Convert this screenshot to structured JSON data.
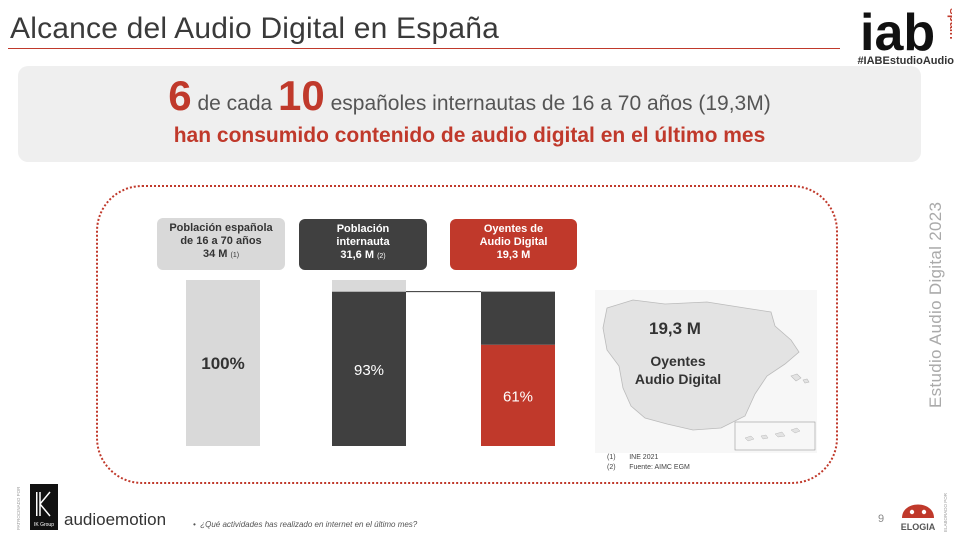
{
  "page": {
    "title": "Alcance del Audio Digital en España",
    "hashtag": "#IABEstudioAudio",
    "logo_text": "iab",
    "logo_subtext": "spain",
    "vertical_title": "Estudio Audio Digital 2023",
    "page_number": "9"
  },
  "headline": {
    "num1": "6",
    "text1": " de cada ",
    "num2": "10",
    "text2": " españoles internautas de 16 a 70 años (19,3M)",
    "line2": "han consumido contenido de audio digital en el último mes"
  },
  "labels": {
    "c1_l1": "Población española",
    "c1_l2": "de 16 a 70 años",
    "c1_l3": "34 M",
    "c1_sup": "(1)",
    "c2_l1": "Población",
    "c2_l2": "internauta",
    "c2_l3": "31,6 M",
    "c2_sup": "(2)",
    "c3_l1": "Oyentes de",
    "c3_l2": "Audio Digital",
    "c3_l3": "19,3 M"
  },
  "map": {
    "value": "19,3 M",
    "label_l1": "Oyentes",
    "label_l2": "Audio Digital"
  },
  "notes": {
    "n1_num": "(1)",
    "n1_text": "INE 2021",
    "n2_num": "(2)",
    "n2_text": "Fuente: AIMC EGM"
  },
  "footer": {
    "footnote": "¿Qué actividades has realizado en internet en el último mes?",
    "patrocinado": "PATROCINADO POR",
    "elaborado": "ELABORADO POR",
    "ikgroup": "IK Group",
    "audioemotion": "audioemotion",
    "elogia": "ELOGIA"
  },
  "colors": {
    "accent": "#c0392b",
    "dark": "#404040",
    "light": "#d9d9d9"
  },
  "chart_data": {
    "type": "bar",
    "stacked": true,
    "categories": [
      "Población española de 16 a 70 años 34 M",
      "Población internauta 31,6 M",
      "Oyentes de Audio Digital 19,3 M"
    ],
    "ylim": [
      0,
      100
    ],
    "bars": [
      {
        "segments": [
          {
            "value": 100,
            "color": "#d9d9d9",
            "label": "100%"
          }
        ]
      },
      {
        "segments": [
          {
            "value": 93,
            "color": "#404040",
            "label": "93%"
          },
          {
            "value": 7,
            "color": "#d9d9d9",
            "label": ""
          }
        ]
      },
      {
        "segments": [
          {
            "value": 61,
            "color": "#c0392b",
            "label": "61%"
          },
          {
            "value": 32,
            "color": "#404040",
            "label": ""
          }
        ]
      }
    ]
  }
}
